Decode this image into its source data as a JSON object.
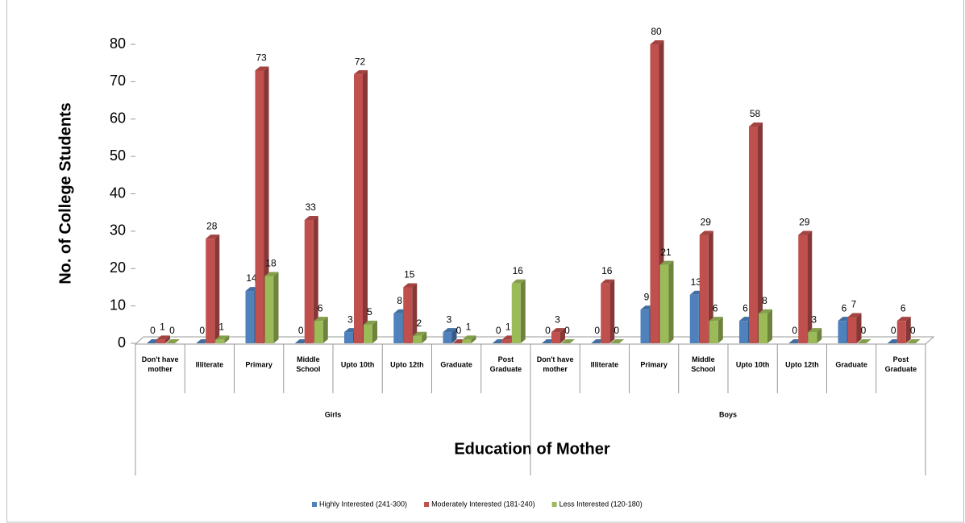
{
  "chart_data": {
    "type": "bar3d",
    "x_label": "Education of Mother",
    "y_label": "No. of College Students",
    "groups": [
      {
        "name": "Girls",
        "categories": [
          "Don't have mother",
          "Illiterate",
          "Primary",
          "Middle School",
          "Upto 10th",
          "Upto 12th",
          "Graduate",
          "Post Graduate"
        ]
      },
      {
        "name": "Boys",
        "categories": [
          "Don't have mother",
          "Illiterate",
          "Primary",
          "Middle School",
          "Upto 10th",
          "Upto 12th",
          "Graduate",
          "Post Graduate"
        ]
      }
    ],
    "series": [
      {
        "name": "Highly Interested (241-300)",
        "color": "#4f81bd",
        "values": [
          0,
          0,
          14,
          0,
          3,
          8,
          3,
          0,
          0,
          0,
          9,
          13,
          6,
          0,
          6,
          0
        ]
      },
      {
        "name": "Moderately Interested (181-240)",
        "color": "#c0504d",
        "values": [
          1,
          28,
          73,
          33,
          72,
          15,
          0,
          1,
          3,
          16,
          80,
          29,
          58,
          29,
          7,
          6
        ]
      },
      {
        "name": "Less Interested (120-180)",
        "color": "#9bbb59",
        "values": [
          0,
          1,
          18,
          6,
          5,
          2,
          1,
          16,
          0,
          0,
          21,
          6,
          8,
          3,
          0,
          0
        ]
      }
    ],
    "ylim": [
      0,
      80
    ],
    "yticks": [
      0,
      10,
      20,
      30,
      40,
      50,
      60,
      70,
      80
    ],
    "legend": "bottom"
  }
}
